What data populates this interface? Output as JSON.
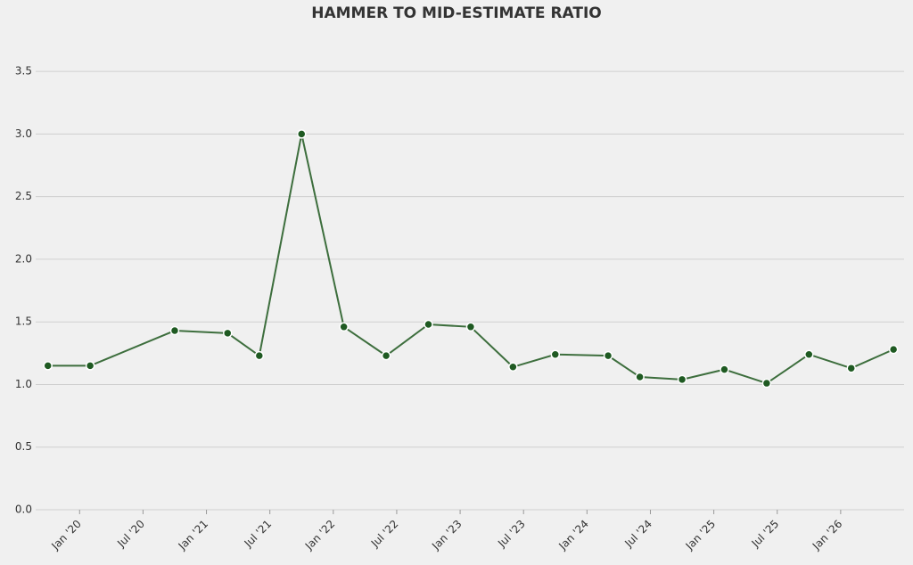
{
  "chart_data": {
    "type": "line",
    "title": "HAMMER TO MID-ESTIMATE RATIO",
    "x": [
      "2019-10",
      "2020-02",
      "2020-10",
      "2021-03",
      "2021-06",
      "2021-10",
      "2022-02",
      "2022-06",
      "2022-10",
      "2023-02",
      "2023-06",
      "2023-10",
      "2024-03",
      "2024-06",
      "2024-10",
      "2025-02",
      "2025-06",
      "2025-10",
      "2026-02",
      "2026-06"
    ],
    "series": [
      {
        "color": "#3d6e3d",
        "marker_color": "#1f5a22",
        "values": [
          1.15,
          1.15,
          1.43,
          1.41,
          1.23,
          3.0,
          1.46,
          1.23,
          1.48,
          1.46,
          1.14,
          1.24,
          1.23,
          1.06,
          1.04,
          1.12,
          1.01,
          1.24,
          1.13,
          1.28
        ]
      }
    ],
    "xlim": [
      "2019-08",
      "2026-07"
    ],
    "xticks": [
      {
        "value": "2020-01",
        "label": "Jan '20"
      },
      {
        "value": "2020-07",
        "label": "Jul '20"
      },
      {
        "value": "2021-01",
        "label": "Jan '21"
      },
      {
        "value": "2021-07",
        "label": "Jul '21"
      },
      {
        "value": "2022-01",
        "label": "Jan '22"
      },
      {
        "value": "2022-07",
        "label": "Jul '22"
      },
      {
        "value": "2023-01",
        "label": "Jan '23"
      },
      {
        "value": "2023-07",
        "label": "Jul '23"
      },
      {
        "value": "2024-01",
        "label": "Jan '24"
      },
      {
        "value": "2024-07",
        "label": "Jul '24"
      },
      {
        "value": "2025-01",
        "label": "Jan '25"
      },
      {
        "value": "2025-07",
        "label": "Jul '25"
      },
      {
        "value": "2026-01",
        "label": "Jan '26"
      }
    ],
    "ylim": [
      0,
      3.7
    ],
    "yticks": [
      {
        "value": 0,
        "label": "0.0"
      },
      {
        "value": 0.5,
        "label": "0.5"
      },
      {
        "value": 1,
        "label": "1.0"
      },
      {
        "value": 1.5,
        "label": "1.5"
      },
      {
        "value": 2,
        "label": "2.0"
      },
      {
        "value": 2.5,
        "label": "2.5"
      },
      {
        "value": 3,
        "label": "3.0"
      },
      {
        "value": 3.5,
        "label": "3.5"
      }
    ],
    "grid": true
  }
}
